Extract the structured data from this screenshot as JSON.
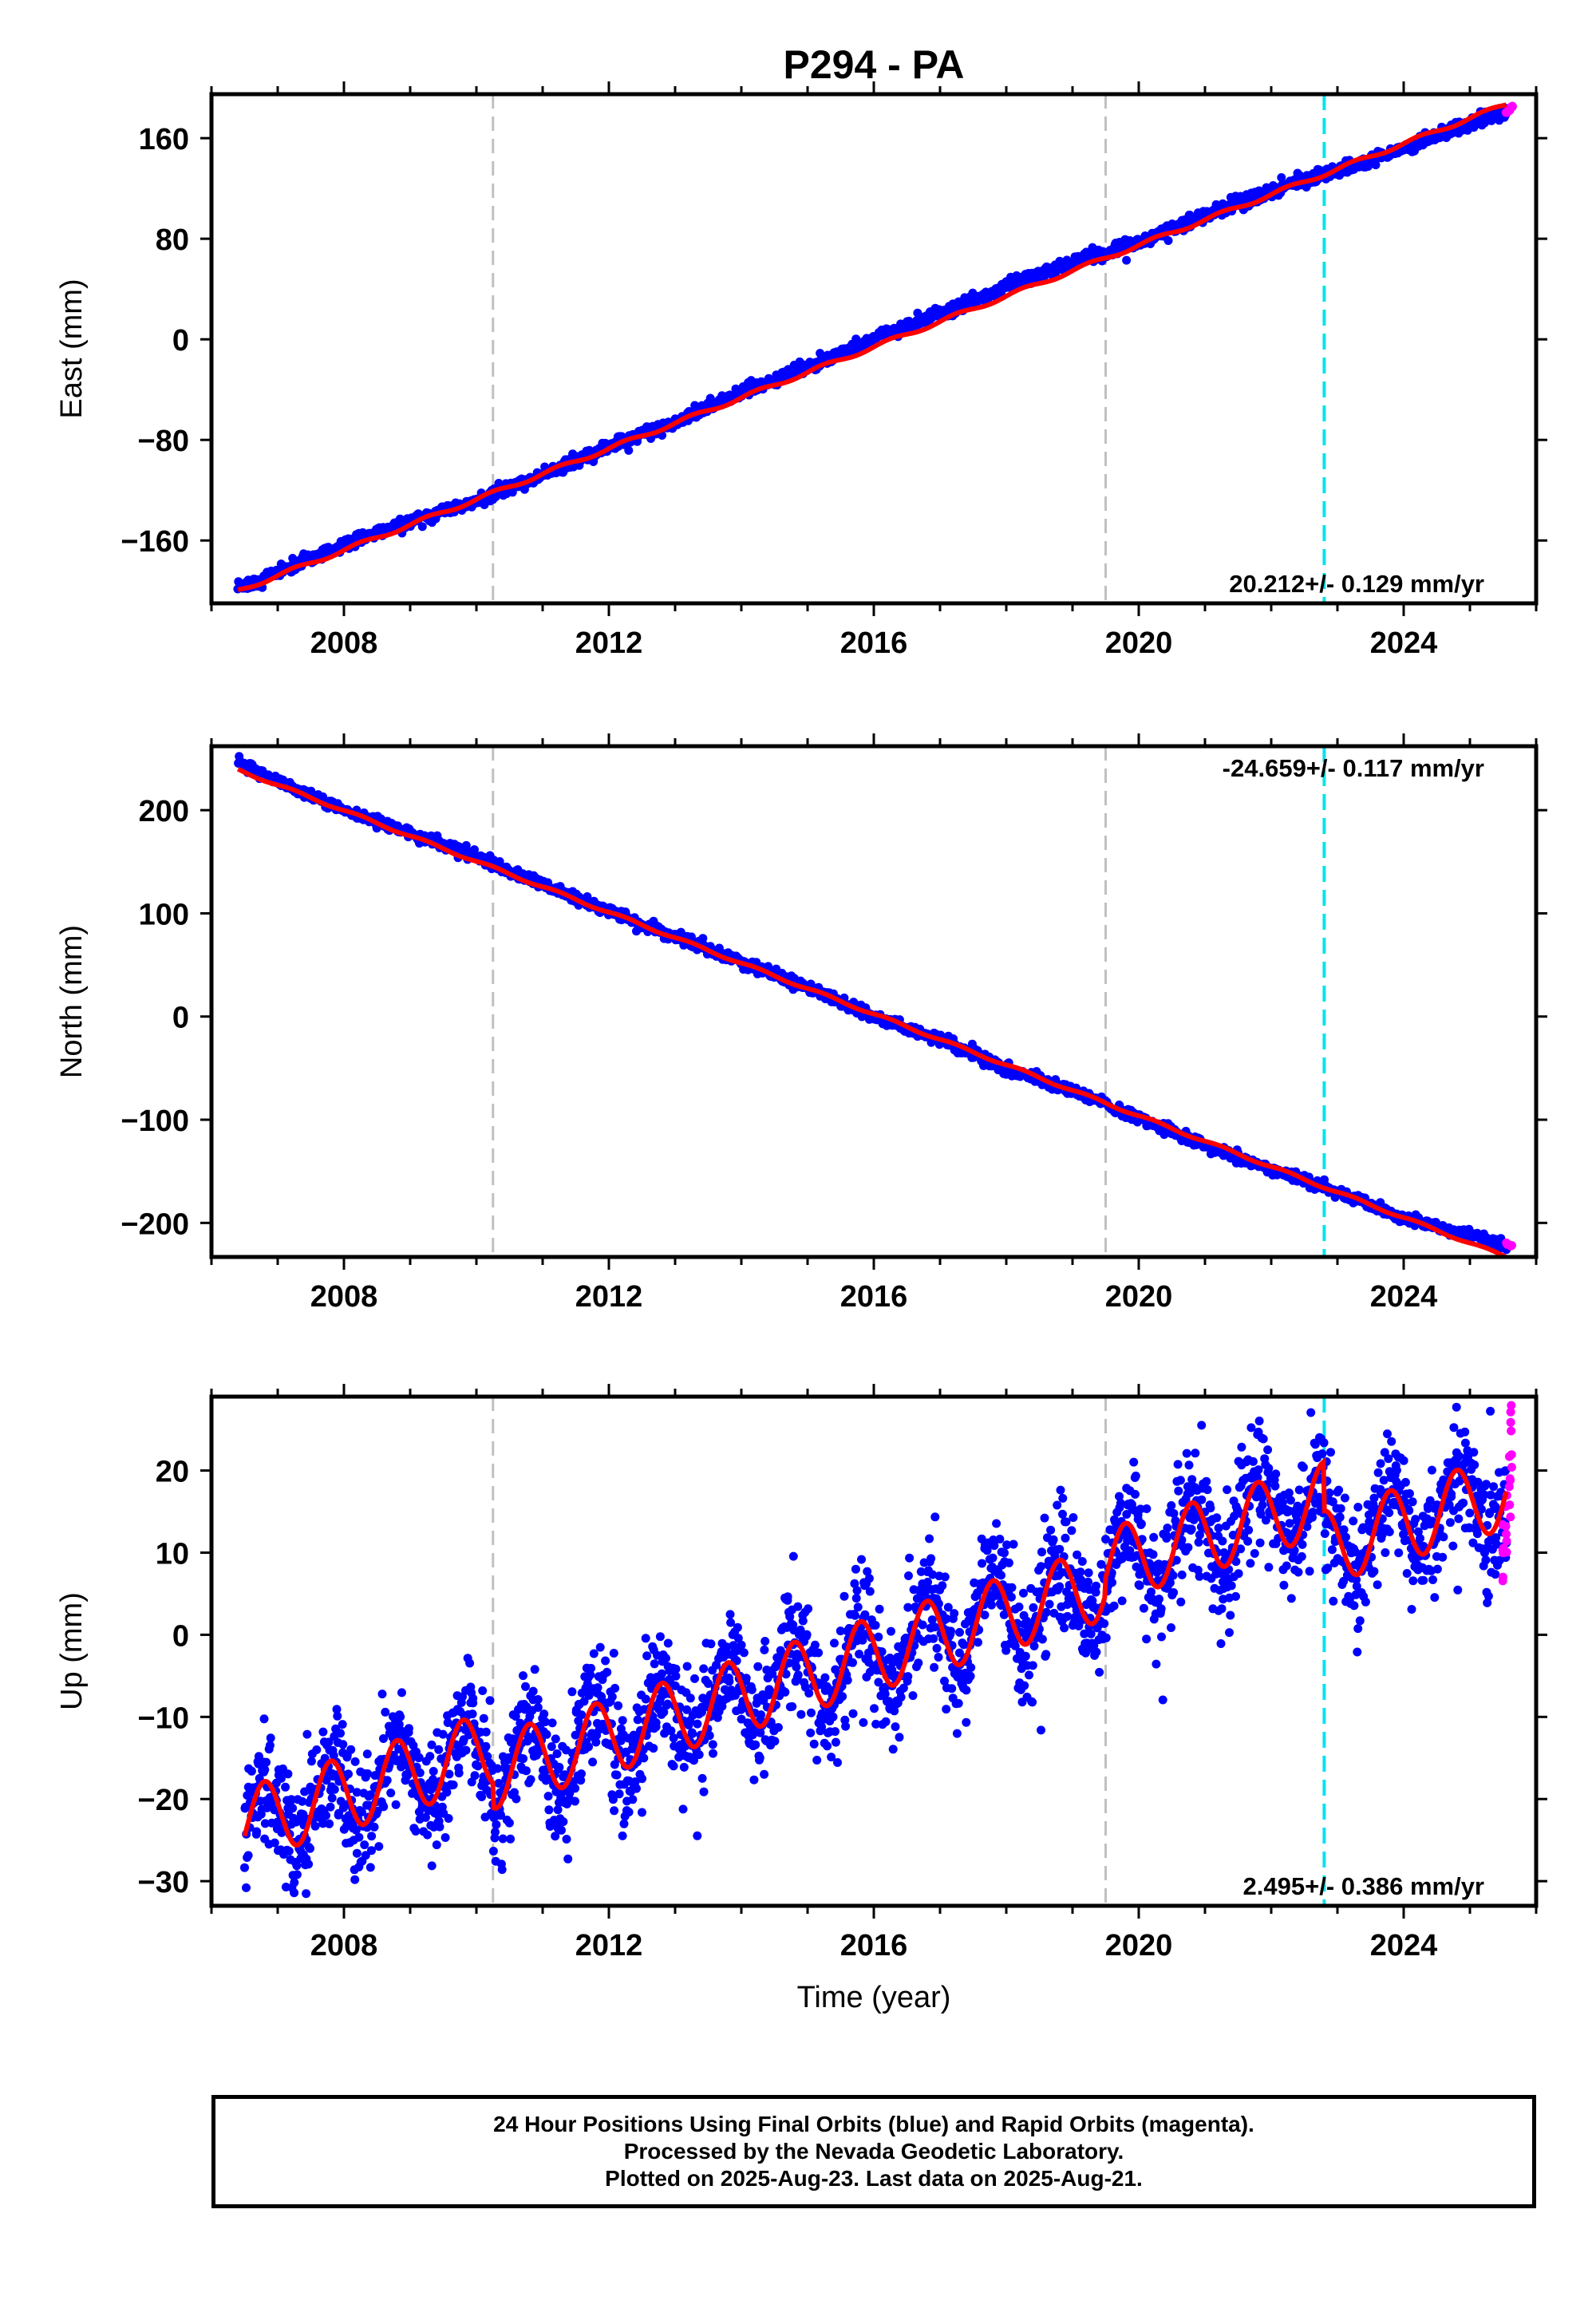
{
  "title": "P294 - PA",
  "colors": {
    "final_orbits": "#0000ff",
    "rapid_orbits": "#ff00ff",
    "model_fit": "#ff0000",
    "gray_offset_line": "#c0c0c0",
    "cyan_offset_line": "#00e5ee"
  },
  "xlabel": "Time (year)",
  "x_ticks": [
    "2008",
    "2012",
    "2016",
    "2020",
    "2024"
  ],
  "vertical_lines": [
    {
      "year": 2010.25,
      "color": "gray"
    },
    {
      "year": 2019.5,
      "color": "gray"
    },
    {
      "year": 2022.8,
      "color": "cyan"
    }
  ],
  "caption": {
    "line1": "24 Hour Positions Using Final Orbits (blue) and Rapid Orbits (magenta).",
    "line2": "Processed by the Nevada Geodetic Laboratory.",
    "line3": "Plotted on 2025-Aug-23. Last data on 2025-Aug-21."
  },
  "chart_data": [
    {
      "type": "scatter",
      "panel": "east",
      "ylabel": "East (mm)",
      "rate_label": "20.212+/- 0.129 mm/yr",
      "rate_position": "bottom-right",
      "xlim": [
        2006.0,
        2026.0
      ],
      "ylim": [
        -210,
        195
      ],
      "y_ticks": [
        160,
        80,
        0,
        -80,
        -160
      ],
      "y_tick_labels": [
        "160",
        "80",
        "0",
        "−80",
        "−160"
      ],
      "series": [
        {
          "name": "Final Orbits",
          "color": "blue",
          "x": [
            2006.4,
            2007.0,
            2008.0,
            2009.0,
            2010.0,
            2011.0,
            2012.0,
            2013.0,
            2014.0,
            2015.0,
            2016.0,
            2017.0,
            2018.0,
            2019.0,
            2020.0,
            2021.0,
            2022.0,
            2023.0,
            2024.0,
            2025.0,
            2025.55
          ],
          "values": [
            -200,
            -185,
            -163,
            -145,
            -128,
            -108,
            -86,
            -66,
            -42,
            -22,
            0,
            20,
            42,
            61,
            77,
            98,
            118,
            134,
            152,
            172,
            180
          ]
        },
        {
          "name": "Rapid Orbits",
          "color": "magenta",
          "x": [
            2025.55,
            2025.6,
            2025.63
          ],
          "values": [
            181,
            183,
            185
          ]
        }
      ],
      "model_fit": {
        "rate_mm_per_yr": 20.212,
        "annual_amplitude_mm": 1.5,
        "zero_year": 2016.3,
        "steps": []
      }
    },
    {
      "type": "scatter",
      "panel": "north",
      "ylabel": "North (mm)",
      "rate_label": "-24.659+/- 0.117 mm/yr",
      "rate_position": "top-right",
      "xlim": [
        2006.0,
        2026.0
      ],
      "ylim": [
        -233,
        262
      ],
      "y_ticks": [
        200,
        100,
        0,
        -100,
        -200
      ],
      "y_tick_labels": [
        "200",
        "100",
        "0",
        "−100",
        "−200"
      ],
      "series": [
        {
          "name": "Final Orbits",
          "color": "blue",
          "x": [
            2006.4,
            2007.0,
            2008.0,
            2009.0,
            2010.0,
            2011.0,
            2012.0,
            2013.0,
            2014.0,
            2015.0,
            2016.0,
            2017.0,
            2018.0,
            2019.0,
            2020.0,
            2021.0,
            2022.0,
            2023.0,
            2024.0,
            2025.0,
            2025.55
          ],
          "values": [
            246,
            228,
            200,
            178,
            155,
            128,
            102,
            77,
            53,
            28,
            0,
            -22,
            -50,
            -72,
            -98,
            -125,
            -148,
            -170,
            -195,
            -212,
            -222
          ]
        },
        {
          "name": "Rapid Orbits",
          "color": "magenta",
          "x": [
            2025.55,
            2025.6,
            2025.63
          ],
          "values": [
            -220,
            -221,
            -222
          ]
        }
      ],
      "model_fit": {
        "rate_mm_per_yr": -24.659,
        "annual_amplitude_mm": 1.2,
        "zero_year": 2016.1,
        "steps": []
      }
    },
    {
      "type": "scatter",
      "panel": "up",
      "ylabel": "Up (mm)",
      "rate_label": "2.495+/- 0.386 mm/yr",
      "rate_position": "bottom-right",
      "xlim": [
        2006.0,
        2026.0
      ],
      "ylim": [
        -33,
        29
      ],
      "y_ticks": [
        20,
        10,
        0,
        -10,
        -20,
        -30
      ],
      "y_tick_labels": [
        "20",
        "10",
        "0",
        "−10",
        "−20",
        "−30"
      ],
      "series": [
        {
          "name": "Final Orbits",
          "color": "blue",
          "x": [
            2006.5,
            2007.0,
            2008.0,
            2009.0,
            2010.0,
            2011.0,
            2012.0,
            2013.0,
            2014.0,
            2015.0,
            2016.0,
            2017.0,
            2018.0,
            2019.0,
            2020.0,
            2021.0,
            2022.0,
            2023.0,
            2024.0,
            2025.0,
            2025.55
          ],
          "values": [
            -20,
            -15,
            -12,
            -10,
            -9,
            -10,
            -8,
            -5,
            -3,
            0,
            2,
            4,
            5,
            8,
            7,
            10,
            12,
            8,
            8,
            10,
            13
          ],
          "spread_mm": 3.5
        },
        {
          "name": "Rapid Orbits",
          "color": "magenta",
          "x": [
            2025.5,
            2025.55,
            2025.6,
            2025.63
          ],
          "values": [
            10,
            14,
            18,
            24
          ]
        }
      ],
      "model_fit": {
        "rate_mm_per_yr": 2.495,
        "annual_amplitude_mm": 4.5,
        "phase_peak_frac": 0.8,
        "intercept_at_2016": 0.6,
        "steps": [
          {
            "year": 2010.25,
            "size_mm": -3
          },
          {
            "year": 2019.5,
            "size_mm": 2
          },
          {
            "year": 2022.8,
            "size_mm": -6
          }
        ]
      }
    }
  ]
}
